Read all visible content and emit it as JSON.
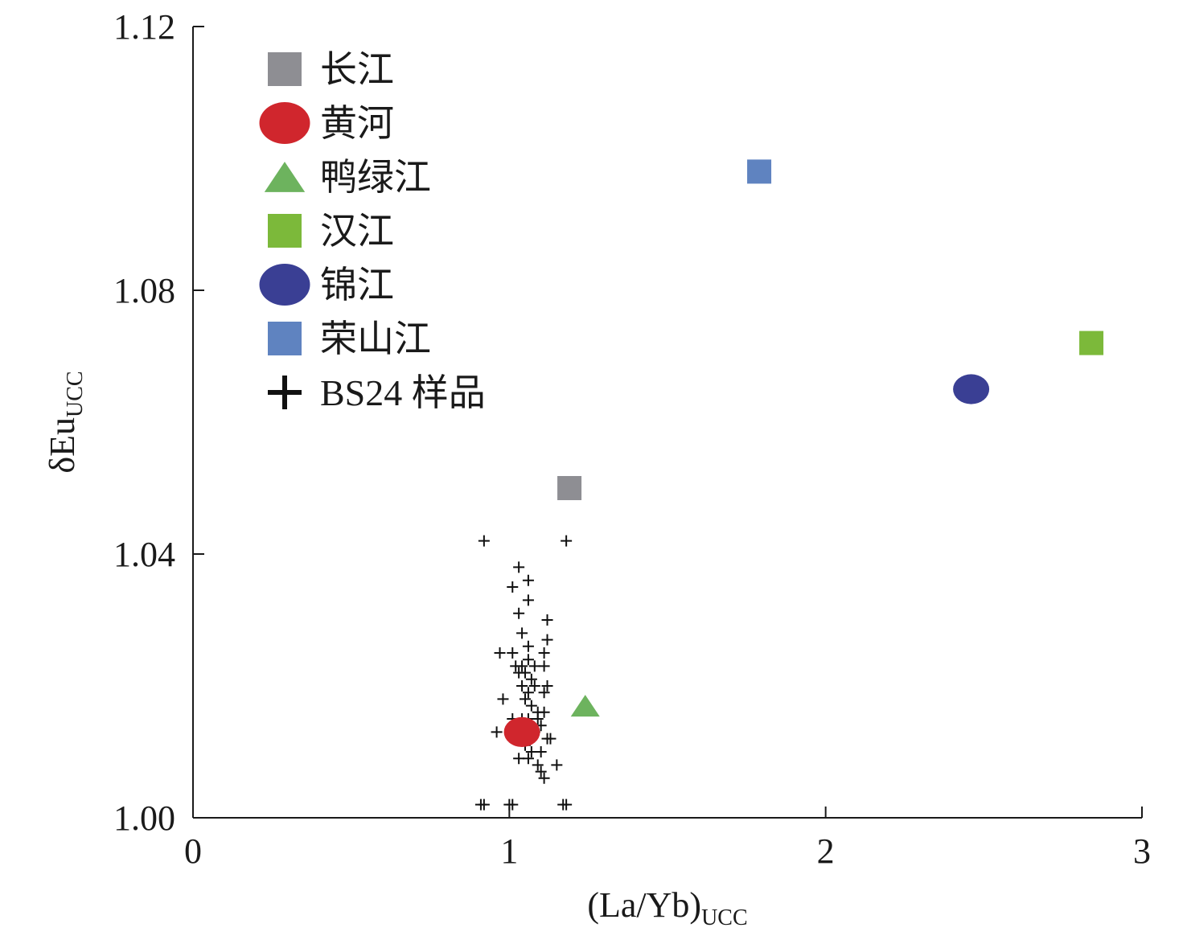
{
  "chart_data": {
    "type": "scatter",
    "xlabel": {
      "main": "(La/Yb)",
      "sub": "UCC"
    },
    "ylabel": {
      "main": "δEu",
      "sub": "UCC"
    },
    "xlim": [
      0,
      3
    ],
    "ylim": [
      1.0,
      1.12
    ],
    "x_ticks": [
      0,
      1,
      2,
      3
    ],
    "x_tick_labels": [
      "0",
      "1",
      "2",
      "3"
    ],
    "y_ticks": [
      1.0,
      1.04,
      1.08,
      1.12
    ],
    "y_tick_labels": [
      "1.00",
      "1.04",
      "1.08",
      "1.12"
    ],
    "grid": false,
    "legend_position": "top-left",
    "series": [
      {
        "name": "长江",
        "marker": "square",
        "color": "#8e8e93",
        "points": [
          [
            1.19,
            1.05
          ]
        ]
      },
      {
        "name": "黄河",
        "marker": "circle",
        "color": "#d0262d",
        "points": [
          [
            1.04,
            1.013
          ]
        ]
      },
      {
        "name": "鸭绿江",
        "marker": "triangle",
        "color": "#6db35e",
        "points": [
          [
            1.24,
            1.017
          ]
        ]
      },
      {
        "name": "汉江",
        "marker": "square",
        "color": "#7cb93a",
        "points": [
          [
            2.84,
            1.072
          ]
        ]
      },
      {
        "name": "锦江",
        "marker": "circle",
        "color": "#3a3f94",
        "points": [
          [
            2.46,
            1.065
          ]
        ]
      },
      {
        "name": "荣山江",
        "marker": "square",
        "color": "#5f83c0",
        "points": [
          [
            1.79,
            1.098
          ]
        ]
      },
      {
        "name": "BS24 样品",
        "marker": "plus",
        "color": "#111111",
        "points": [
          [
            0.92,
            1.042
          ],
          [
            1.18,
            1.042
          ],
          [
            1.03,
            1.038
          ],
          [
            1.06,
            1.036
          ],
          [
            1.01,
            1.035
          ],
          [
            1.06,
            1.033
          ],
          [
            1.03,
            1.031
          ],
          [
            1.12,
            1.03
          ],
          [
            1.04,
            1.028
          ],
          [
            1.12,
            1.027
          ],
          [
            0.97,
            1.025
          ],
          [
            1.01,
            1.025
          ],
          [
            1.06,
            1.026
          ],
          [
            1.11,
            1.025
          ],
          [
            1.02,
            1.023
          ],
          [
            1.04,
            1.023
          ],
          [
            1.06,
            1.024
          ],
          [
            1.08,
            1.023
          ],
          [
            1.11,
            1.023
          ],
          [
            1.03,
            1.022
          ],
          [
            1.05,
            1.022
          ],
          [
            1.07,
            1.021
          ],
          [
            1.04,
            1.02
          ],
          [
            1.08,
            1.02
          ],
          [
            1.12,
            1.02
          ],
          [
            1.06,
            1.019
          ],
          [
            1.11,
            1.019
          ],
          [
            0.98,
            1.018
          ],
          [
            1.05,
            1.018
          ],
          [
            1.07,
            1.017
          ],
          [
            1.09,
            1.016
          ],
          [
            1.11,
            1.016
          ],
          [
            1.01,
            1.015
          ],
          [
            1.04,
            1.015
          ],
          [
            1.06,
            1.015
          ],
          [
            1.09,
            1.015
          ],
          [
            1.07,
            1.014
          ],
          [
            1.1,
            1.014
          ],
          [
            0.96,
            1.013
          ],
          [
            1.08,
            1.013
          ],
          [
            1.13,
            1.012
          ],
          [
            1.12,
            1.012
          ],
          [
            1.05,
            1.011
          ],
          [
            1.1,
            1.01
          ],
          [
            1.07,
            1.01
          ],
          [
            1.03,
            1.009
          ],
          [
            1.06,
            1.009
          ],
          [
            1.09,
            1.008
          ],
          [
            1.15,
            1.008
          ],
          [
            1.1,
            1.007
          ],
          [
            1.11,
            1.006
          ],
          [
            0.91,
            1.002
          ],
          [
            0.92,
            1.002
          ],
          [
            1.0,
            1.002
          ],
          [
            1.01,
            1.002
          ],
          [
            1.17,
            1.002
          ],
          [
            1.18,
            1.002
          ]
        ]
      }
    ]
  }
}
